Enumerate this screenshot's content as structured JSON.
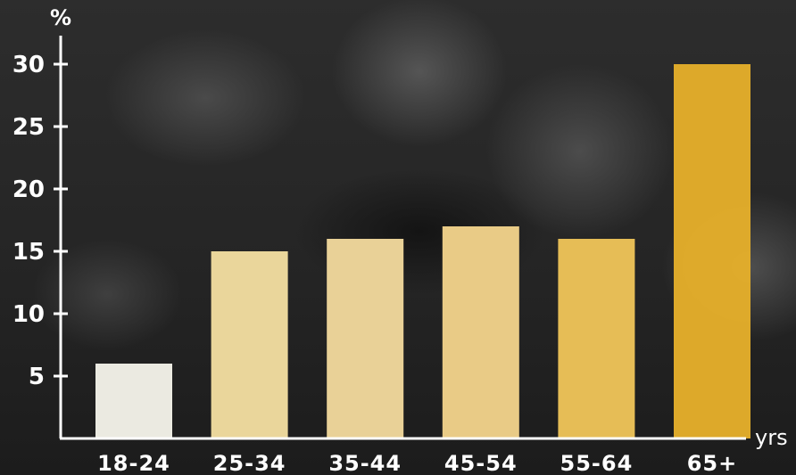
{
  "chart_data": {
    "type": "bar",
    "categories": [
      "18-24",
      "25-34",
      "35-44",
      "45-54",
      "55-64",
      "65+"
    ],
    "values": [
      6,
      15,
      16,
      17,
      16,
      30
    ],
    "title": "",
    "xlabel": "yrs",
    "ylabel": "%",
    "ylim": [
      0,
      30
    ],
    "yticks": [
      5,
      10,
      15,
      20,
      25,
      30
    ],
    "ytick_labels": [
      "5",
      "10",
      "15",
      "20",
      "25",
      "30"
    ],
    "grid": false,
    "bar_colors": [
      "#f4f2e9",
      "#f3dea0",
      "#f1d99c",
      "#f1d28a",
      "#eec458",
      "#e5af2b"
    ],
    "axis_color": "#ffffff"
  }
}
